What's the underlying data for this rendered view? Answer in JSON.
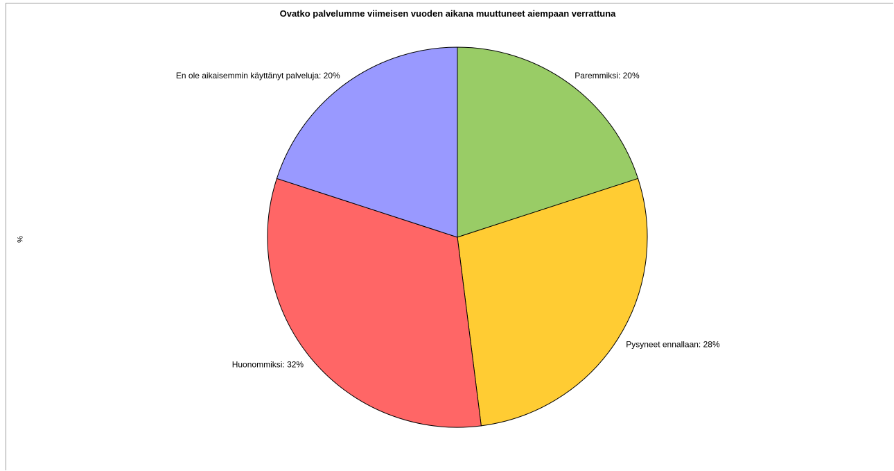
{
  "chart_data": {
    "type": "pie",
    "title": "Ovatko palvelumme viimeisen vuoden aikana muuttuneet aiempaan verrattuna",
    "ylabel": "%",
    "start_angle_deg": 0,
    "direction": "clockwise",
    "slices": [
      {
        "label": "Paremmiksi",
        "value": 20,
        "display": "Paremmiksi: 20%",
        "color": "#99cc66"
      },
      {
        "label": "Pysyneet ennallaan",
        "value": 28,
        "display": "Pysyneet ennallaan: 28%",
        "color": "#ffcc33"
      },
      {
        "label": "Huonommiksi",
        "value": 32,
        "display": "Huonommiksi: 32%",
        "color": "#ff6666"
      },
      {
        "label": "En ole aikaisemmin käyttänyt palveluja",
        "value": 20,
        "display": "En ole aikaisemmin käyttänyt palveluja: 20%",
        "color": "#9999ff"
      }
    ]
  }
}
